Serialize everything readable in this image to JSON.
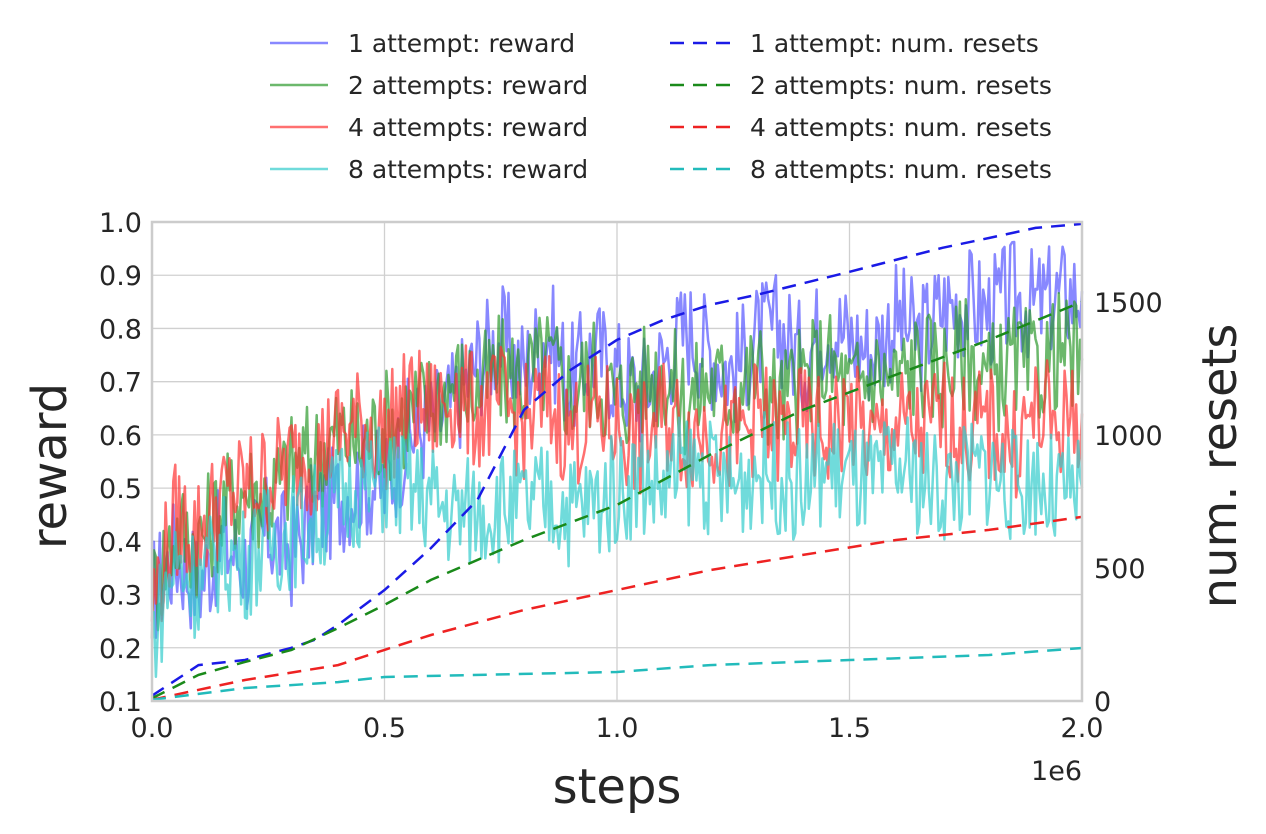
{
  "chart_data": {
    "type": "line",
    "xlabel": "steps",
    "ylabel": "reward",
    "y2label": "num. resets",
    "x_offset_label": "1e6",
    "xlim": [
      0,
      2000000
    ],
    "ylim": [
      0.1,
      1.0
    ],
    "y2lim": [
      0,
      1800
    ],
    "x_ticks": [
      "0.0",
      "0.5",
      "1.0",
      "1.5",
      "2.0"
    ],
    "x_tick_values": [
      0,
      500000,
      1000000,
      1500000,
      2000000
    ],
    "y_ticks": [
      "0.1",
      "0.2",
      "0.3",
      "0.4",
      "0.5",
      "0.6",
      "0.7",
      "0.8",
      "0.9",
      "1.0"
    ],
    "y2_ticks": [
      "0",
      "500",
      "1000",
      "1500"
    ],
    "grid": true,
    "legend_placement": "top, above plot, two columns",
    "x": [
      0,
      50000,
      100000,
      150000,
      200000,
      250000,
      300000,
      350000,
      400000,
      450000,
      500000,
      550000,
      600000,
      650000,
      700000,
      750000,
      800000,
      850000,
      900000,
      950000,
      1000000,
      1050000,
      1100000,
      1150000,
      1200000,
      1250000,
      1300000,
      1350000,
      1400000,
      1450000,
      1500000,
      1550000,
      1600000,
      1650000,
      1700000,
      1750000,
      1800000,
      1850000,
      1900000,
      1950000,
      2000000
    ],
    "reward_series": [
      {
        "name": "1 attempt: reward",
        "color": "#5555ff",
        "values": [
          0.3,
          0.38,
          0.32,
          0.4,
          0.36,
          0.42,
          0.38,
          0.45,
          0.48,
          0.52,
          0.5,
          0.6,
          0.62,
          0.66,
          0.74,
          0.78,
          0.72,
          0.8,
          0.7,
          0.76,
          0.72,
          0.68,
          0.74,
          0.8,
          0.76,
          0.72,
          0.78,
          0.8,
          0.74,
          0.82,
          0.78,
          0.76,
          0.82,
          0.78,
          0.84,
          0.85,
          0.83,
          0.86,
          0.84,
          0.86,
          0.87
        ]
      },
      {
        "name": "2 attempts: reward",
        "color": "#2e9a2e",
        "values": [
          0.3,
          0.42,
          0.4,
          0.46,
          0.5,
          0.48,
          0.54,
          0.56,
          0.6,
          0.58,
          0.62,
          0.64,
          0.66,
          0.7,
          0.68,
          0.72,
          0.7,
          0.74,
          0.68,
          0.72,
          0.66,
          0.7,
          0.72,
          0.66,
          0.7,
          0.68,
          0.72,
          0.66,
          0.7,
          0.74,
          0.68,
          0.72,
          0.7,
          0.74,
          0.72,
          0.76,
          0.7,
          0.74,
          0.72,
          0.76,
          0.74
        ]
      },
      {
        "name": "4 attempts: reward",
        "color": "#ff3333",
        "values": [
          0.28,
          0.44,
          0.42,
          0.48,
          0.5,
          0.52,
          0.55,
          0.56,
          0.6,
          0.62,
          0.6,
          0.66,
          0.64,
          0.68,
          0.64,
          0.66,
          0.62,
          0.66,
          0.6,
          0.64,
          0.62,
          0.58,
          0.64,
          0.6,
          0.62,
          0.58,
          0.64,
          0.6,
          0.62,
          0.6,
          0.64,
          0.58,
          0.62,
          0.6,
          0.64,
          0.6,
          0.62,
          0.58,
          0.64,
          0.62,
          0.64
        ]
      },
      {
        "name": "8 attempts: reward",
        "color": "#33cccc",
        "values": [
          0.22,
          0.36,
          0.32,
          0.38,
          0.36,
          0.4,
          0.42,
          0.44,
          0.48,
          0.5,
          0.52,
          0.5,
          0.48,
          0.45,
          0.46,
          0.47,
          0.46,
          0.48,
          0.46,
          0.47,
          0.5,
          0.52,
          0.5,
          0.54,
          0.52,
          0.5,
          0.54,
          0.52,
          0.5,
          0.54,
          0.52,
          0.5,
          0.54,
          0.52,
          0.5,
          0.52,
          0.54,
          0.5,
          0.52,
          0.48,
          0.5
        ]
      }
    ],
    "resets_series": [
      {
        "name": "1 attempt: num. resets",
        "color": "#1a1ae6",
        "x": [
          0,
          100000,
          200000,
          300000,
          350000,
          400000,
          500000,
          600000,
          700000,
          800000,
          900000,
          1000000,
          1100000,
          1200000,
          1300000,
          1500000,
          1700000,
          1800000,
          1900000,
          2000000
        ],
        "values": [
          20,
          135,
          154,
          200,
          230,
          286,
          417,
          575,
          756,
          1094,
          1244,
          1357,
          1432,
          1489,
          1526,
          1613,
          1703,
          1740,
          1778,
          1793
        ]
      },
      {
        "name": "2 attempts: num. resets",
        "color": "#1a8a1a",
        "x": [
          0,
          100000,
          200000,
          300000,
          400000,
          500000,
          600000,
          800000,
          1000000,
          1200000,
          1400000,
          1600000,
          1800000,
          2000000
        ],
        "values": [
          10,
          98,
          147,
          192,
          274,
          361,
          455,
          605,
          737,
          925,
          1094,
          1226,
          1357,
          1500
        ]
      },
      {
        "name": "4 attempts: num. resets",
        "color": "#ee2222",
        "x": [
          0,
          200000,
          400000,
          500000,
          600000,
          800000,
          1000000,
          1200000,
          1400000,
          1600000,
          1800000,
          2000000
        ],
        "values": [
          5,
          79,
          135,
          192,
          248,
          342,
          417,
          492,
          549,
          605,
          643,
          692
        ]
      },
      {
        "name": "8 attempts: num. resets",
        "color": "#22bbbb",
        "x": [
          0,
          200000,
          400000,
          500000,
          800000,
          1000000,
          1200000,
          1500000,
          1800000,
          2000000
        ],
        "values": [
          5,
          49,
          71,
          90,
          102,
          109,
          135,
          154,
          173,
          199
        ]
      }
    ]
  }
}
